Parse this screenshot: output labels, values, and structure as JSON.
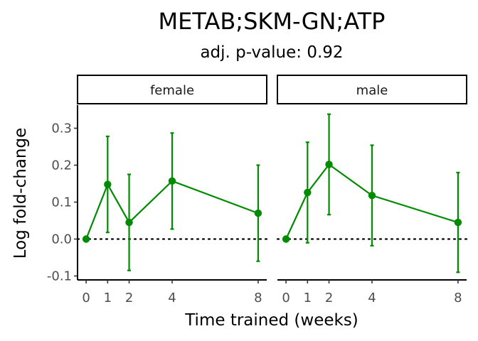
{
  "title": "METAB;SKM-GN;ATP",
  "subtitle": "adj. p-value: 0.92",
  "colors": {
    "series": "#008B00",
    "axis": "#000000",
    "tick_text": "#4d4d4d"
  },
  "chart_data": {
    "type": "line",
    "xlabel": "Time trained (weeks)",
    "ylabel": "Log fold-change",
    "x_ticks": [
      0,
      1,
      2,
      4,
      8
    ],
    "y_ticks": [
      -0.1,
      0.0,
      0.1,
      0.2,
      0.3
    ],
    "y_tick_labels": [
      "-0.1",
      "0.0",
      "0.1",
      "0.2",
      "0.3"
    ],
    "xlim": [
      -0.4,
      8.4
    ],
    "ylim": [
      -0.11,
      0.36
    ],
    "reference_line": {
      "y": 0,
      "style": "dotted"
    },
    "grid": false,
    "panels": [
      {
        "label": "female",
        "x": [
          0,
          1,
          2,
          4,
          8
        ],
        "y": [
          0.0,
          0.148,
          0.045,
          0.157,
          0.07
        ],
        "lower": [
          0.0,
          0.018,
          -0.085,
          0.027,
          -0.06
        ],
        "upper": [
          0.0,
          0.278,
          0.175,
          0.287,
          0.2
        ]
      },
      {
        "label": "male",
        "x": [
          0,
          1,
          2,
          4,
          8
        ],
        "y": [
          0.0,
          0.126,
          0.202,
          0.118,
          0.045
        ],
        "lower": [
          0.0,
          -0.01,
          0.066,
          -0.018,
          -0.09
        ],
        "upper": [
          0.0,
          0.262,
          0.338,
          0.254,
          0.18
        ]
      }
    ]
  }
}
